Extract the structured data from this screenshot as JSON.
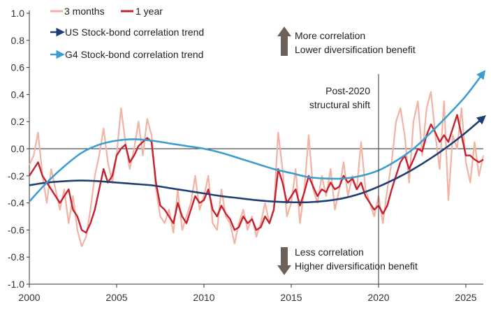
{
  "chart_data": {
    "type": "line",
    "title": "",
    "xlabel": "",
    "ylabel": "",
    "xlim": [
      2000,
      2026
    ],
    "ylim": [
      -1.0,
      1.0
    ],
    "x_ticks": [
      2000,
      2005,
      2010,
      2015,
      2020,
      2025
    ],
    "x_tick_labels": [
      "2000",
      "2005",
      "2010",
      "2015",
      "2020",
      "2025"
    ],
    "y_ticks": [
      1.0,
      0.8,
      0.6,
      0.4,
      0.2,
      0.0,
      -0.2,
      -0.4,
      -0.6,
      -0.8,
      -1.0
    ],
    "y_tick_labels": [
      "1.0",
      "0.8",
      "0.6",
      "0.4",
      "0.2",
      "0.0",
      "-0.2",
      "-0.4",
      "-0.6",
      "-0.8",
      "-1.0"
    ],
    "zero_line": true,
    "grid": false,
    "legend_position": "top-left",
    "series": [
      {
        "name": "3 months",
        "color": "#f2b3a3",
        "x": [
          2000.0,
          2000.25,
          2000.5,
          2000.75,
          2001.0,
          2001.25,
          2001.5,
          2001.75,
          2002.0,
          2002.25,
          2002.5,
          2002.75,
          2003.0,
          2003.25,
          2003.5,
          2003.75,
          2004.0,
          2004.25,
          2004.5,
          2004.75,
          2005.0,
          2005.25,
          2005.5,
          2005.75,
          2006.0,
          2006.25,
          2006.5,
          2006.75,
          2007.0,
          2007.25,
          2007.5,
          2007.75,
          2008.0,
          2008.25,
          2008.5,
          2008.75,
          2009.0,
          2009.25,
          2009.5,
          2009.75,
          2010.0,
          2010.25,
          2010.5,
          2010.75,
          2011.0,
          2011.25,
          2011.5,
          2011.75,
          2012.0,
          2012.25,
          2012.5,
          2012.75,
          2013.0,
          2013.25,
          2013.5,
          2013.75,
          2014.0,
          2014.25,
          2014.5,
          2014.75,
          2015.0,
          2015.25,
          2015.5,
          2015.75,
          2016.0,
          2016.25,
          2016.5,
          2016.75,
          2017.0,
          2017.25,
          2017.5,
          2017.75,
          2018.0,
          2018.25,
          2018.5,
          2018.75,
          2019.0,
          2019.25,
          2019.5,
          2019.75,
          2020.0,
          2020.25,
          2020.5,
          2020.75,
          2021.0,
          2021.25,
          2021.5,
          2021.75,
          2022.0,
          2022.25,
          2022.5,
          2022.75,
          2023.0,
          2023.25,
          2023.5,
          2023.75,
          2024.0,
          2024.25,
          2024.5,
          2024.75,
          2025.0,
          2025.25,
          2025.5,
          2025.75,
          2026.0
        ],
        "values": [
          -0.12,
          -0.05,
          0.12,
          -0.2,
          -0.4,
          -0.15,
          -0.3,
          -0.45,
          -0.3,
          -0.55,
          -0.35,
          -0.6,
          -0.72,
          -0.65,
          -0.45,
          -0.2,
          -0.05,
          0.15,
          -0.1,
          -0.25,
          -0.05,
          0.3,
          0.05,
          -0.15,
          0.0,
          0.2,
          -0.05,
          0.22,
          0.1,
          -0.3,
          -0.5,
          -0.55,
          -0.45,
          -0.62,
          -0.3,
          -0.6,
          -0.5,
          -0.4,
          -0.2,
          -0.45,
          -0.35,
          -0.2,
          -0.55,
          -0.6,
          -0.3,
          -0.5,
          -0.55,
          -0.7,
          -0.55,
          -0.45,
          -0.6,
          -0.5,
          -0.65,
          -0.55,
          -0.4,
          -0.55,
          -0.45,
          0.12,
          -0.15,
          -0.5,
          -0.4,
          -0.15,
          -0.55,
          -0.3,
          0.1,
          -0.3,
          -0.4,
          -0.2,
          -0.35,
          -0.15,
          -0.45,
          -0.3,
          -0.1,
          -0.35,
          -0.2,
          -0.3,
          0.05,
          -0.3,
          -0.4,
          -0.5,
          -0.35,
          -0.55,
          -0.3,
          -0.1,
          0.2,
          0.3,
          0.1,
          -0.25,
          0.2,
          0.35,
          -0.05,
          0.3,
          0.42,
          0.1,
          -0.15,
          0.35,
          -0.38,
          0.1,
          0.0,
          0.3,
          -0.1,
          -0.25,
          0.05,
          -0.2,
          -0.05
        ]
      },
      {
        "name": "1 year",
        "color": "#c8202f",
        "x": [
          2000.0,
          2000.25,
          2000.5,
          2000.75,
          2001.0,
          2001.25,
          2001.5,
          2001.75,
          2002.0,
          2002.25,
          2002.5,
          2002.75,
          2003.0,
          2003.25,
          2003.5,
          2003.75,
          2004.0,
          2004.25,
          2004.5,
          2004.75,
          2005.0,
          2005.25,
          2005.5,
          2005.75,
          2006.0,
          2006.25,
          2006.5,
          2006.75,
          2007.0,
          2007.25,
          2007.5,
          2007.75,
          2008.0,
          2008.25,
          2008.5,
          2008.75,
          2009.0,
          2009.25,
          2009.5,
          2009.75,
          2010.0,
          2010.25,
          2010.5,
          2010.75,
          2011.0,
          2011.25,
          2011.5,
          2011.75,
          2012.0,
          2012.25,
          2012.5,
          2012.75,
          2013.0,
          2013.25,
          2013.5,
          2013.75,
          2014.0,
          2014.25,
          2014.5,
          2014.75,
          2015.0,
          2015.25,
          2015.5,
          2015.75,
          2016.0,
          2016.25,
          2016.5,
          2016.75,
          2017.0,
          2017.25,
          2017.5,
          2017.75,
          2018.0,
          2018.25,
          2018.5,
          2018.75,
          2019.0,
          2019.25,
          2019.5,
          2019.75,
          2020.0,
          2020.25,
          2020.5,
          2020.75,
          2021.0,
          2021.25,
          2021.5,
          2021.75,
          2022.0,
          2022.25,
          2022.5,
          2022.75,
          2023.0,
          2023.25,
          2023.5,
          2023.75,
          2024.0,
          2024.25,
          2024.5,
          2024.75,
          2025.0,
          2025.25,
          2025.5,
          2025.75,
          2026.0
        ],
        "values": [
          -0.2,
          -0.15,
          -0.1,
          -0.2,
          -0.25,
          -0.3,
          -0.35,
          -0.4,
          -0.35,
          -0.3,
          -0.45,
          -0.5,
          -0.6,
          -0.62,
          -0.55,
          -0.45,
          -0.3,
          -0.15,
          -0.25,
          -0.2,
          -0.05,
          0.0,
          0.03,
          -0.1,
          -0.05,
          0.02,
          0.05,
          0.08,
          0.05,
          -0.25,
          -0.42,
          -0.45,
          -0.5,
          -0.55,
          -0.4,
          -0.5,
          -0.55,
          -0.45,
          -0.35,
          -0.4,
          -0.38,
          -0.3,
          -0.45,
          -0.5,
          -0.42,
          -0.48,
          -0.52,
          -0.6,
          -0.58,
          -0.5,
          -0.55,
          -0.52,
          -0.6,
          -0.58,
          -0.5,
          -0.55,
          -0.45,
          -0.15,
          -0.25,
          -0.4,
          -0.35,
          -0.3,
          -0.42,
          -0.32,
          -0.2,
          -0.28,
          -0.35,
          -0.3,
          -0.32,
          -0.25,
          -0.3,
          -0.28,
          -0.2,
          -0.25,
          -0.22,
          -0.3,
          -0.25,
          -0.35,
          -0.4,
          -0.45,
          -0.42,
          -0.48,
          -0.42,
          -0.3,
          -0.2,
          -0.1,
          -0.05,
          -0.15,
          -0.08,
          0.0,
          -0.02,
          0.1,
          0.18,
          0.12,
          0.05,
          0.1,
          0.05,
          0.15,
          0.25,
          0.1,
          -0.05,
          -0.05,
          -0.08,
          -0.1,
          -0.08
        ]
      },
      {
        "name": "US Stock-bond correlation trend",
        "color": "#1f3f73",
        "arrow": true,
        "x": [
          2000.0,
          2001.0,
          2002.0,
          2003.0,
          2004.0,
          2005.0,
          2006.0,
          2007.0,
          2008.0,
          2009.0,
          2010.0,
          2011.0,
          2012.0,
          2013.0,
          2014.0,
          2015.0,
          2016.0,
          2017.0,
          2018.0,
          2019.0,
          2020.0,
          2021.0,
          2022.0,
          2023.0,
          2024.0,
          2025.0,
          2026.0
        ],
        "values": [
          -0.27,
          -0.25,
          -0.24,
          -0.235,
          -0.24,
          -0.25,
          -0.26,
          -0.27,
          -0.29,
          -0.31,
          -0.33,
          -0.35,
          -0.365,
          -0.38,
          -0.39,
          -0.395,
          -0.395,
          -0.385,
          -0.365,
          -0.33,
          -0.28,
          -0.22,
          -0.15,
          -0.07,
          0.02,
          0.12,
          0.23
        ]
      },
      {
        "name": "G4 Stock-bond correlation trend",
        "color": "#3a9fd0",
        "arrow": true,
        "x": [
          2000.0,
          2001.0,
          2002.0,
          2003.0,
          2004.0,
          2005.0,
          2006.0,
          2007.0,
          2008.0,
          2009.0,
          2010.0,
          2011.0,
          2012.0,
          2013.0,
          2014.0,
          2015.0,
          2016.0,
          2017.0,
          2018.0,
          2019.0,
          2020.0,
          2021.0,
          2022.0,
          2023.0,
          2024.0,
          2025.0,
          2026.0
        ],
        "values": [
          -0.39,
          -0.25,
          -0.13,
          -0.03,
          0.03,
          0.06,
          0.07,
          0.06,
          0.04,
          0.02,
          0.0,
          -0.03,
          -0.07,
          -0.11,
          -0.15,
          -0.18,
          -0.21,
          -0.22,
          -0.22,
          -0.2,
          -0.16,
          -0.09,
          0.0,
          0.12,
          0.25,
          0.39,
          0.56
        ]
      }
    ],
    "vertical_line": {
      "x": 2020,
      "label_lines": [
        "Post-2020",
        "structural shift"
      ]
    },
    "annotations": {
      "up": {
        "lines": [
          "More correlation",
          "Lower diversification benefit"
        ]
      },
      "down": {
        "lines": [
          "Less correlation",
          "Higher diversification benefit"
        ]
      }
    },
    "arrow_colors": {
      "annotation": "#6b625b"
    }
  }
}
